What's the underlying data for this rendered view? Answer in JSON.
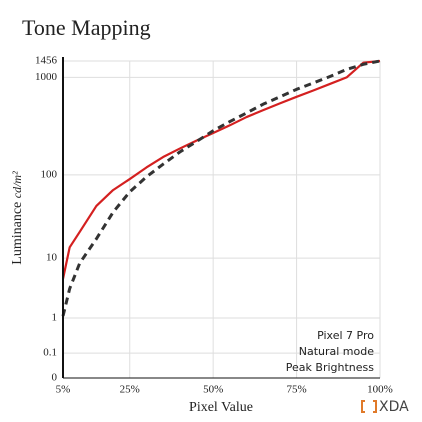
{
  "chart_data": {
    "type": "line",
    "title": "Tone Mapping",
    "xlabel": "Pixel Value",
    "ylabel": "Luminance",
    "yunit": "cd/m²",
    "yscale": "pq",
    "grid": true,
    "xlim": [
      5,
      100
    ],
    "xticks": [
      {
        "value": 5,
        "label": "5%"
      },
      {
        "value": 25,
        "label": "25%"
      },
      {
        "value": 50,
        "label": "50%"
      },
      {
        "value": 75,
        "label": "75%"
      },
      {
        "value": 100,
        "label": "100%"
      }
    ],
    "ylim": [
      0,
      1456
    ],
    "yticks": [
      0,
      0.1,
      1,
      10,
      100,
      1000,
      1456
    ],
    "x": [
      5,
      7,
      10,
      15,
      20,
      25,
      30,
      35,
      40,
      45,
      50,
      55,
      60,
      65,
      70,
      75,
      80,
      85,
      90,
      95,
      100
    ],
    "series": [
      {
        "color": "#d42020",
        "dash": false,
        "values": [
          5,
          14,
          22,
          45,
          68,
          90,
          120,
          155,
          190,
          230,
          275,
          330,
          400,
          470,
          550,
          640,
          740,
          860,
          1000,
          1400,
          1456
        ]
      },
      {
        "color": "#333333",
        "dash": true,
        "values": [
          1.1,
          3.5,
          8.5,
          18,
          38,
          65,
          95,
          130,
          175,
          225,
          290,
          360,
          440,
          540,
          640,
          760,
          880,
          1020,
          1200,
          1350,
          1456
        ]
      }
    ],
    "annotations": [
      "Pixel 7 Pro",
      "Natural mode",
      "Peak Brightness"
    ],
    "watermark": "XDA"
  }
}
